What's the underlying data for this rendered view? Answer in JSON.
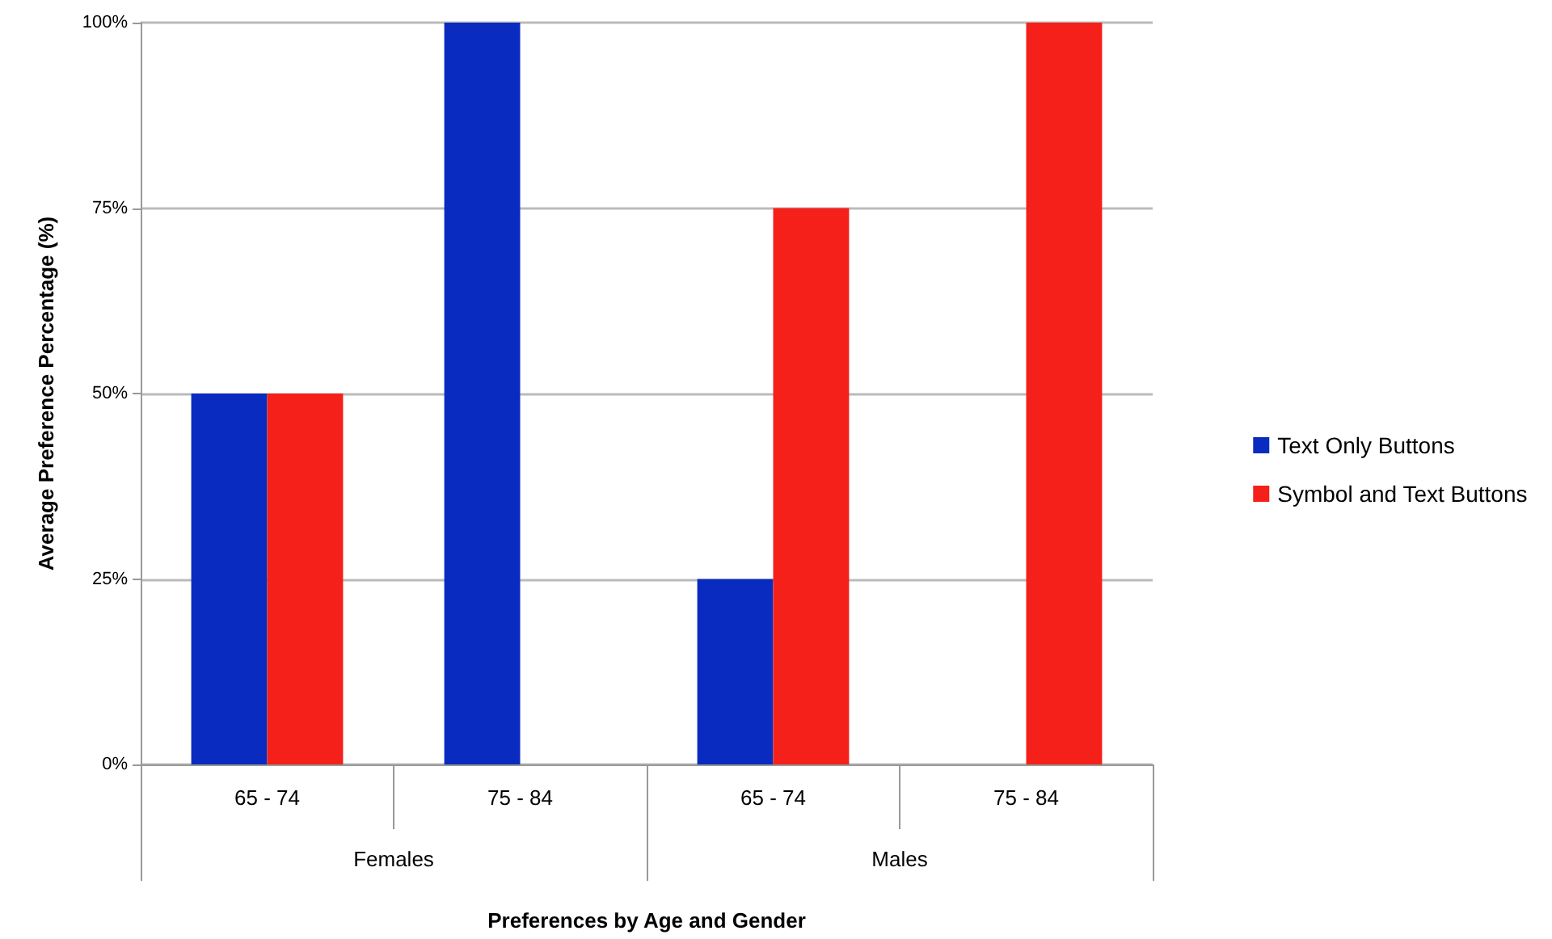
{
  "chart_data": {
    "type": "bar",
    "categories": [
      "65 - 74",
      "75 - 84",
      "65 - 74",
      "75 - 84"
    ],
    "series": [
      {
        "name": "Text Only Buttons",
        "color": "#0a2bbf",
        "values": [
          50,
          100,
          25,
          0
        ]
      },
      {
        "name": "Symbol and Text Buttons",
        "color": "#f5201a",
        "values": [
          50,
          0,
          75,
          100
        ]
      }
    ],
    "annotations": [
      "Females",
      "Males"
    ],
    "xlabel": "Preferences by Age and Gender",
    "ylabel": "Average Preference Percentage (%)",
    "ylim": [
      0,
      100
    ],
    "yticks": [
      {
        "value": 0,
        "label": "0%"
      },
      {
        "value": 25,
        "label": "25%"
      },
      {
        "value": 50,
        "label": "50%"
      },
      {
        "value": 75,
        "label": "75%"
      },
      {
        "value": 100,
        "label": "100%"
      }
    ],
    "grid": "y",
    "legend": "right"
  }
}
